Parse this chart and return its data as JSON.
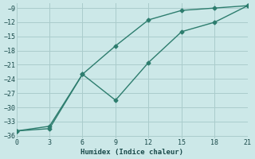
{
  "xlabel": "Humidex (Indice chaleur)",
  "bg_color": "#cce8e8",
  "grid_color": "#aacccc",
  "line_color": "#2d7d6e",
  "xlim": [
    0,
    21
  ],
  "ylim": [
    -36.5,
    -8
  ],
  "xticks": [
    0,
    3,
    6,
    9,
    12,
    15,
    18,
    21
  ],
  "yticks": [
    -9,
    -12,
    -15,
    -18,
    -21,
    -24,
    -27,
    -30,
    -33,
    -36
  ],
  "line1_x": [
    0,
    3,
    6,
    9,
    12,
    15,
    18,
    21
  ],
  "line1_y": [
    -35,
    -34,
    -23,
    -17,
    -11.5,
    -9.5,
    -9,
    -8.5
  ],
  "line2_x": [
    0,
    3,
    6,
    9,
    12,
    15,
    18,
    21
  ],
  "line2_y": [
    -35,
    -34.5,
    -23,
    -28.5,
    -20.5,
    -14,
    -12,
    -8.5
  ],
  "marker": "D",
  "markersize": 2.5,
  "linewidth": 1.0
}
